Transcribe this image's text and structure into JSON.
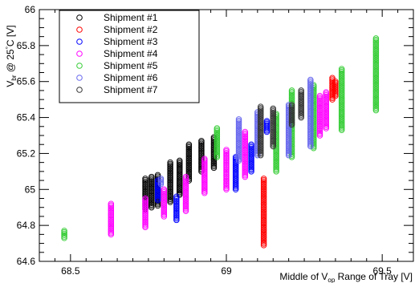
{
  "chart_data": {
    "type": "scatter",
    "xlabel": {
      "prefix": "Middle of V",
      "sub": "op",
      "suffix": " Range of Tray [V]"
    },
    "ylabel": {
      "prefix": "V",
      "sub": "br",
      "mid": " @ 25",
      "sup": "°",
      "suffix": "C [V]"
    },
    "xlim": [
      68.4,
      69.6
    ],
    "ylim": [
      64.6,
      66.0
    ],
    "xticks": [
      "68.5",
      "69",
      "69.5"
    ],
    "xtick_values": [
      68.5,
      69.0,
      69.5
    ],
    "yticks": [
      "64.6",
      "64.8",
      "65",
      "65.2",
      "65.4",
      "65.6",
      "65.8",
      "66"
    ],
    "ytick_values": [
      64.6,
      64.8,
      65.0,
      65.2,
      65.4,
      65.6,
      65.8,
      66.0
    ],
    "legend_position": "top-left",
    "series": [
      {
        "name": "Shipment #1",
        "color": "#000000",
        "columns": [
          {
            "x": 68.74,
            "ymin": 64.89,
            "ymax": 65.06
          },
          {
            "x": 68.76,
            "ymin": 64.9,
            "ymax": 65.07
          },
          {
            "x": 68.78,
            "ymin": 64.91,
            "ymax": 65.08
          },
          {
            "x": 68.82,
            "ymin": 64.93,
            "ymax": 65.15
          },
          {
            "x": 68.85,
            "ymin": 64.97,
            "ymax": 65.16
          },
          {
            "x": 68.88,
            "ymin": 65.05,
            "ymax": 65.25
          },
          {
            "x": 68.92,
            "ymin": 65.1,
            "ymax": 65.27
          },
          {
            "x": 68.96,
            "ymin": 65.12,
            "ymax": 65.29
          }
        ]
      },
      {
        "name": "Shipment #2",
        "color": "#ff0000",
        "columns": [
          {
            "x": 69.12,
            "ymin": 64.69,
            "ymax": 65.06
          },
          {
            "x": 69.34,
            "ymin": 65.5,
            "ymax": 65.62
          },
          {
            "x": 69.35,
            "ymin": 65.52,
            "ymax": 65.6
          }
        ]
      },
      {
        "name": "Shipment #3",
        "color": "#0000ff",
        "columns": [
          {
            "x": 68.78,
            "ymin": 64.94,
            "ymax": 65.05
          },
          {
            "x": 68.84,
            "ymin": 64.83,
            "ymax": 64.96
          },
          {
            "x": 69.03,
            "ymin": 65.0,
            "ymax": 65.18
          },
          {
            "x": 69.08,
            "ymin": 65.1,
            "ymax": 65.25
          },
          {
            "x": 69.13,
            "ymin": 65.32,
            "ymax": 65.38
          }
        ]
      },
      {
        "name": "Shipment #4",
        "color": "#ff00ff",
        "columns": [
          {
            "x": 68.63,
            "ymin": 64.75,
            "ymax": 64.92
          },
          {
            "x": 68.74,
            "ymin": 64.79,
            "ymax": 64.95
          },
          {
            "x": 68.8,
            "ymin": 64.85,
            "ymax": 65.0
          },
          {
            "x": 68.87,
            "ymin": 64.88,
            "ymax": 65.07
          },
          {
            "x": 68.93,
            "ymin": 64.98,
            "ymax": 65.17
          },
          {
            "x": 69.0,
            "ymin": 65.0,
            "ymax": 65.22
          },
          {
            "x": 69.06,
            "ymin": 65.07,
            "ymax": 65.32
          },
          {
            "x": 69.3,
            "ymin": 65.3,
            "ymax": 65.52
          },
          {
            "x": 69.32,
            "ymin": 65.34,
            "ymax": 65.54
          }
        ]
      },
      {
        "name": "Shipment #5",
        "color": "#33cc33",
        "columns": [
          {
            "x": 68.48,
            "ymin": 64.73,
            "ymax": 64.77
          },
          {
            "x": 68.97,
            "ymin": 65.18,
            "ymax": 65.34
          },
          {
            "x": 69.16,
            "ymin": 65.1,
            "ymax": 65.42
          },
          {
            "x": 69.21,
            "ymin": 65.18,
            "ymax": 65.55
          },
          {
            "x": 69.28,
            "ymin": 65.23,
            "ymax": 65.58
          },
          {
            "x": 69.37,
            "ymin": 65.33,
            "ymax": 65.67
          },
          {
            "x": 69.48,
            "ymin": 65.44,
            "ymax": 65.84
          }
        ]
      },
      {
        "name": "Shipment #6",
        "color": "#6666ee",
        "columns": [
          {
            "x": 68.79,
            "ymin": 65.03,
            "ymax": 65.06
          },
          {
            "x": 69.04,
            "ymin": 65.16,
            "ymax": 65.39
          },
          {
            "x": 69.1,
            "ymin": 65.19,
            "ymax": 65.43
          },
          {
            "x": 69.2,
            "ymin": 65.19,
            "ymax": 65.47
          },
          {
            "x": 69.27,
            "ymin": 65.24,
            "ymax": 65.61
          }
        ]
      },
      {
        "name": "Shipment #7",
        "color": "#333333",
        "columns": [
          {
            "x": 69.11,
            "ymin": 65.19,
            "ymax": 65.46
          },
          {
            "x": 69.15,
            "ymin": 65.24,
            "ymax": 65.45
          },
          {
            "x": 69.21,
            "ymin": 65.36,
            "ymax": 65.47
          },
          {
            "x": 69.24,
            "ymin": 65.4,
            "ymax": 65.55
          }
        ]
      }
    ]
  }
}
